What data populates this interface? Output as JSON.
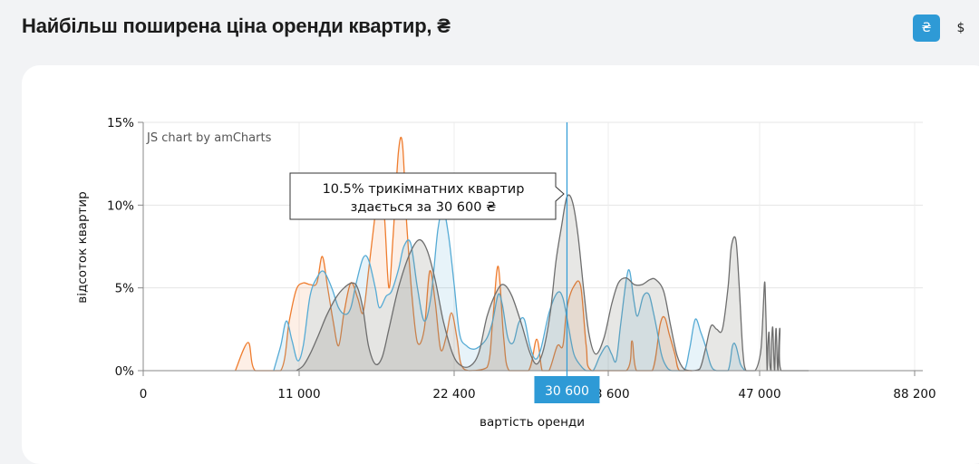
{
  "header": {
    "title": "Найбільш поширена ціна оренди квартир, ₴",
    "currency_buttons": [
      {
        "label": "₴",
        "active": true,
        "color": "#2e9ad6"
      },
      {
        "label": "$",
        "active": false
      }
    ]
  },
  "chart_data": {
    "type": "area",
    "credit": "JS chart by amCharts",
    "xlabel": "вартість оренди",
    "ylabel": "відсоток квартир",
    "ylim": [
      0,
      15
    ],
    "y_ticks": [
      "0%",
      "5%",
      "10%",
      "15%"
    ],
    "x_ticks": [
      "0",
      "11 000",
      "22 400",
      "33 600",
      "47 000",
      "88 200"
    ],
    "cursor": {
      "value": "30 600"
    },
    "tooltip": {
      "line1": "10.5% трикімнатних квартир",
      "line2": "здається за 30 600 ₴"
    },
    "series": [
      {
        "color": "#ef7d2f",
        "points": [
          [
            6500,
            0
          ],
          [
            7400,
            1.7
          ],
          [
            7900,
            0
          ],
          [
            9700,
            0
          ],
          [
            10300,
            3
          ],
          [
            10800,
            4.9
          ],
          [
            11300,
            5.3
          ],
          [
            11800,
            5.2
          ],
          [
            12300,
            5.3
          ],
          [
            12700,
            6.9
          ],
          [
            13100,
            5
          ],
          [
            13500,
            3
          ],
          [
            13900,
            1.5
          ],
          [
            14300,
            3.5
          ],
          [
            14800,
            5.3
          ],
          [
            15300,
            4.4
          ],
          [
            15700,
            3.5
          ],
          [
            16100,
            6
          ],
          [
            16600,
            9.5
          ],
          [
            17000,
            11.7
          ],
          [
            17300,
            9
          ],
          [
            17600,
            5
          ],
          [
            17900,
            8
          ],
          [
            18300,
            13.2
          ],
          [
            18600,
            13.7
          ],
          [
            18900,
            9
          ],
          [
            19300,
            4.5
          ],
          [
            19700,
            1.7
          ],
          [
            20200,
            2.5
          ],
          [
            20600,
            6
          ],
          [
            21000,
            4.2
          ],
          [
            21400,
            1.3
          ],
          [
            21800,
            2
          ],
          [
            22200,
            3.5
          ],
          [
            22600,
            2
          ],
          [
            22900,
            0.4
          ],
          [
            23500,
            0
          ],
          [
            24800,
            0.2
          ],
          [
            25200,
            3
          ],
          [
            25600,
            6.3
          ],
          [
            26000,
            2
          ],
          [
            26400,
            0
          ],
          [
            27800,
            0
          ],
          [
            28400,
            1.9
          ],
          [
            28800,
            0
          ],
          [
            29300,
            0
          ],
          [
            29900,
            1.5
          ],
          [
            30300,
            1.5
          ],
          [
            30600,
            3.8
          ],
          [
            31100,
            5.1
          ],
          [
            31600,
            5.1
          ],
          [
            32000,
            1.5
          ],
          [
            32400,
            0
          ],
          [
            35200,
            0
          ],
          [
            35700,
            1.8
          ],
          [
            36100,
            0
          ],
          [
            37500,
            0
          ],
          [
            38200,
            2.8
          ],
          [
            38600,
            3.2
          ],
          [
            39000,
            2.2
          ],
          [
            39500,
            1
          ],
          [
            39900,
            0
          ],
          [
            41000,
            0
          ]
        ]
      },
      {
        "color": "#56abd5",
        "points": [
          [
            9200,
            0
          ],
          [
            9700,
            1.5
          ],
          [
            10100,
            3
          ],
          [
            10500,
            1.8
          ],
          [
            10900,
            0.6
          ],
          [
            11300,
            1.5
          ],
          [
            11800,
            4.5
          ],
          [
            12300,
            5.6
          ],
          [
            12800,
            6
          ],
          [
            13400,
            5
          ],
          [
            13900,
            3.8
          ],
          [
            14400,
            3.4
          ],
          [
            14800,
            3.8
          ],
          [
            15200,
            5.3
          ],
          [
            15700,
            6.8
          ],
          [
            16100,
            6.7
          ],
          [
            16600,
            5
          ],
          [
            16900,
            3.8
          ],
          [
            17400,
            4.5
          ],
          [
            17800,
            4.8
          ],
          [
            18300,
            6.1
          ],
          [
            18700,
            7.5
          ],
          [
            19200,
            7.7
          ],
          [
            19700,
            5
          ],
          [
            20200,
            3
          ],
          [
            20700,
            4.5
          ],
          [
            21200,
            8.5
          ],
          [
            21600,
            9.7
          ],
          [
            22000,
            8.1
          ],
          [
            22400,
            5.2
          ],
          [
            22800,
            2.2
          ],
          [
            23300,
            1.5
          ],
          [
            23800,
            1.3
          ],
          [
            24300,
            1.5
          ],
          [
            24800,
            2
          ],
          [
            25200,
            3
          ],
          [
            25600,
            4.6
          ],
          [
            25900,
            4
          ],
          [
            26300,
            2
          ],
          [
            26700,
            1.7
          ],
          [
            27100,
            2.9
          ],
          [
            27500,
            3.1
          ],
          [
            27900,
            1.5
          ],
          [
            28300,
            0.7
          ],
          [
            28700,
            1.3
          ],
          [
            29300,
            3.5
          ],
          [
            29900,
            4.7
          ],
          [
            30300,
            4.4
          ],
          [
            30700,
            2.7
          ],
          [
            31100,
            1
          ],
          [
            31600,
            0.3
          ],
          [
            32000,
            0
          ],
          [
            32500,
            0
          ],
          [
            33000,
            0.9
          ],
          [
            33500,
            1.5
          ],
          [
            33900,
            1
          ],
          [
            34300,
            0.6
          ],
          [
            34700,
            2.8
          ],
          [
            35200,
            5.5
          ],
          [
            35500,
            6
          ],
          [
            35900,
            4.1
          ],
          [
            36200,
            3.3
          ],
          [
            36700,
            4.5
          ],
          [
            37200,
            4.6
          ],
          [
            37600,
            3.5
          ],
          [
            37900,
            2.5
          ],
          [
            38300,
            1
          ],
          [
            38700,
            0.3
          ],
          [
            39200,
            0
          ],
          [
            40300,
            0
          ],
          [
            40800,
            1.3
          ],
          [
            41300,
            3.1
          ],
          [
            41800,
            2.3
          ],
          [
            42200,
            1.5
          ],
          [
            42700,
            0.3
          ],
          [
            43200,
            0
          ],
          [
            44200,
            0
          ],
          [
            44600,
            1.5
          ],
          [
            44900,
            1.5
          ],
          [
            45300,
            0.4
          ],
          [
            45700,
            0
          ]
        ]
      },
      {
        "color": "#6e6e6e",
        "points": [
          [
            10800,
            0
          ],
          [
            11300,
            0.3
          ],
          [
            11800,
            1
          ],
          [
            12400,
            2.1
          ],
          [
            13000,
            3.3
          ],
          [
            13700,
            4.4
          ],
          [
            14300,
            5
          ],
          [
            14900,
            5.3
          ],
          [
            15300,
            5
          ],
          [
            15700,
            3.7
          ],
          [
            16100,
            1.5
          ],
          [
            16600,
            0.4
          ],
          [
            17100,
            0.8
          ],
          [
            17600,
            2.5
          ],
          [
            18300,
            5
          ],
          [
            19100,
            7
          ],
          [
            19800,
            7.9
          ],
          [
            20400,
            7.3
          ],
          [
            21000,
            5.5
          ],
          [
            21600,
            3
          ],
          [
            22300,
            1
          ],
          [
            22900,
            0.3
          ],
          [
            23600,
            0.3
          ],
          [
            24200,
            1.1
          ],
          [
            24800,
            3.3
          ],
          [
            25500,
            4.8
          ],
          [
            26000,
            5.2
          ],
          [
            26600,
            4.5
          ],
          [
            27300,
            2.8
          ],
          [
            27900,
            1.1
          ],
          [
            28400,
            0.4
          ],
          [
            28900,
            1.3
          ],
          [
            29400,
            3.6
          ],
          [
            29800,
            6.6
          ],
          [
            30200,
            8.7
          ],
          [
            30600,
            10.5
          ],
          [
            31000,
            10.2
          ],
          [
            31400,
            8.2
          ],
          [
            31800,
            5
          ],
          [
            32200,
            2.2
          ],
          [
            32700,
            1
          ],
          [
            33300,
            2
          ],
          [
            33900,
            4
          ],
          [
            34500,
            5.3
          ],
          [
            35200,
            5.6
          ],
          [
            35900,
            5.2
          ],
          [
            36600,
            5.2
          ],
          [
            37300,
            5.5
          ],
          [
            37800,
            5.5
          ],
          [
            38500,
            4.8
          ],
          [
            39100,
            2.8
          ],
          [
            39700,
            0.9
          ],
          [
            40300,
            0.1
          ],
          [
            41000,
            0
          ],
          [
            41700,
            0.1
          ],
          [
            42200,
            1.3
          ],
          [
            42700,
            2.7
          ],
          [
            43200,
            2.5
          ],
          [
            43700,
            2.5
          ],
          [
            44200,
            5
          ],
          [
            44500,
            7.5
          ],
          [
            44900,
            7.9
          ],
          [
            45200,
            5
          ],
          [
            45500,
            1.3
          ],
          [
            45800,
            0
          ],
          [
            46600,
            0
          ],
          [
            47200,
            1
          ],
          [
            47700,
            2.5
          ],
          [
            48100,
            4.5
          ],
          [
            48400,
            5.3
          ],
          [
            48700,
            3
          ],
          [
            49000,
            0
          ],
          [
            49200,
            1.5
          ],
          [
            49500,
            2.3
          ],
          [
            49700,
            0.5
          ],
          [
            50000,
            0
          ],
          [
            50200,
            1.8
          ],
          [
            50500,
            2.6
          ],
          [
            50800,
            0.6
          ],
          [
            51000,
            0
          ],
          [
            51200,
            1.8
          ],
          [
            51400,
            2.5
          ],
          [
            51700,
            0.5
          ],
          [
            51900,
            0
          ],
          [
            52100,
            1.6
          ],
          [
            52400,
            2.5
          ],
          [
            52700,
            0
          ],
          [
            58000,
            0
          ],
          [
            60000,
            0
          ]
        ]
      }
    ]
  }
}
